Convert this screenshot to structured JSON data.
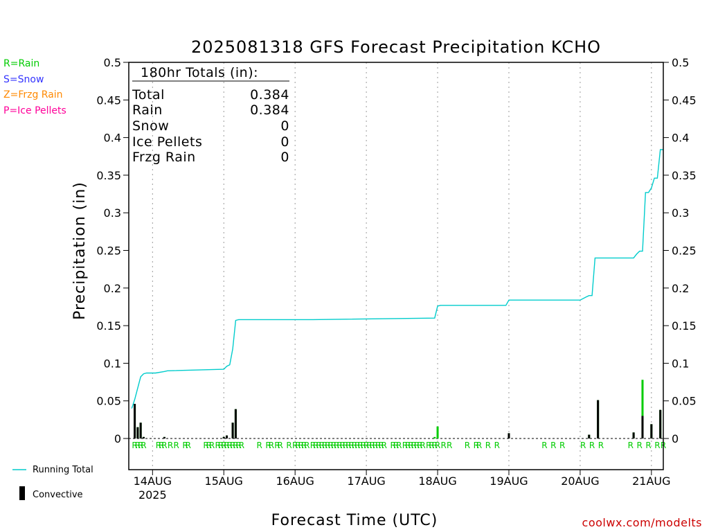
{
  "chart_data": {
    "type": "bar",
    "title": "2025081318 GFS Forecast Precipitation KCHO",
    "xlabel": "Forecast Time (UTC)",
    "ylabel": "Precipitation (in)",
    "ylim": [
      0,
      0.5
    ],
    "xlim_hours": [
      -2,
      178
    ],
    "y_ticks": [
      "0",
      "0.05",
      "0.1",
      "0.15",
      "0.2",
      "0.25",
      "0.3",
      "0.35",
      "0.4",
      "0.45",
      "0.5"
    ],
    "x_ticks": [
      {
        "hour": 6,
        "label": "14AUG",
        "sub": "2025"
      },
      {
        "hour": 30,
        "label": "15AUG"
      },
      {
        "hour": 54,
        "label": "16AUG"
      },
      {
        "hour": 78,
        "label": "17AUG"
      },
      {
        "hour": 102,
        "label": "18AUG"
      },
      {
        "hour": 126,
        "label": "19AUG"
      },
      {
        "hour": 150,
        "label": "20AUG"
      },
      {
        "hour": 174,
        "label": "21AUG"
      }
    ],
    "grid": "vertical dotted at day ticks",
    "legend_ptype": [
      {
        "text": "R=Rain",
        "color": "#00cc00"
      },
      {
        "text": "S=Snow",
        "color": "#3333ff"
      },
      {
        "text": "Z=Frzg Rain",
        "color": "#ff8800"
      },
      {
        "text": "P=Ice Pellets",
        "color": "#ff0099"
      }
    ],
    "legend_bottom": [
      {
        "text": "Running Total",
        "color": "#00cccc"
      },
      {
        "text": "Convective",
        "color": "#000000"
      }
    ],
    "totals": {
      "header": "180hr Totals (in):",
      "rows": [
        {
          "label": "Total",
          "value": "0.384"
        },
        {
          "label": "Rain",
          "value": "0.384"
        },
        {
          "label": "Snow",
          "value": "0"
        },
        {
          "label": "Ice Pellets",
          "value": "0"
        },
        {
          "label": "Frzg Rain",
          "value": "0"
        }
      ]
    },
    "precip_bars": [
      {
        "hour": 0,
        "rain": 0.046,
        "conv": 0.046
      },
      {
        "hour": 1,
        "rain": 0.015,
        "conv": 0.015
      },
      {
        "hour": 2,
        "rain": 0.021,
        "conv": 0.021
      },
      {
        "hour": 3,
        "rain": 0.002,
        "conv": 0.002
      },
      {
        "hour": 10,
        "rain": 0.002,
        "conv": 0.002
      },
      {
        "hour": 30,
        "rain": 0.002,
        "conv": 0.002
      },
      {
        "hour": 31,
        "rain": 0.004,
        "conv": 0.004
      },
      {
        "hour": 33,
        "rain": 0.021,
        "conv": 0.021
      },
      {
        "hour": 34,
        "rain": 0.039,
        "conv": 0.039
      },
      {
        "hour": 101,
        "rain": 0.002,
        "conv": 0.0
      },
      {
        "hour": 102,
        "rain": 0.016,
        "conv": 0.0
      },
      {
        "hour": 126,
        "rain": 0.007,
        "conv": 0.007
      },
      {
        "hour": 153,
        "rain": 0.005,
        "conv": 0.005
      },
      {
        "hour": 156,
        "rain": 0.051,
        "conv": 0.051
      },
      {
        "hour": 168,
        "rain": 0.008,
        "conv": 0.008
      },
      {
        "hour": 171,
        "rain": 0.078,
        "conv": 0.03
      },
      {
        "hour": 174,
        "rain": 0.019,
        "conv": 0.019
      },
      {
        "hour": 177,
        "rain": 0.038,
        "conv": 0.038
      }
    ],
    "running_total": {
      "x": [
        -1,
        0,
        1,
        2,
        3,
        4,
        7,
        10,
        11,
        30,
        31,
        32,
        33,
        34,
        35,
        60,
        101,
        102,
        103,
        120,
        125,
        126,
        127,
        150,
        152,
        153,
        154,
        155,
        156,
        157,
        168,
        169,
        170,
        171,
        172,
        173,
        174,
        175,
        176,
        177,
        178
      ],
      "y": [
        0.04,
        0.052,
        0.067,
        0.082,
        0.086,
        0.087,
        0.087,
        0.089,
        0.09,
        0.092,
        0.096,
        0.098,
        0.119,
        0.157,
        0.158,
        0.158,
        0.16,
        0.176,
        0.177,
        0.177,
        0.177,
        0.184,
        0.184,
        0.184,
        0.188,
        0.19,
        0.19,
        0.24,
        0.24,
        0.24,
        0.24,
        0.245,
        0.249,
        0.249,
        0.327,
        0.327,
        0.333,
        0.346,
        0.346,
        0.384,
        0.384
      ]
    },
    "ptype_labels": {
      "text": "R",
      "hours": [
        0,
        1,
        2,
        3,
        8,
        9,
        10,
        12,
        14,
        17,
        18,
        24,
        25,
        26,
        28,
        29,
        30,
        31,
        32,
        33,
        34,
        35,
        36,
        42,
        45,
        46,
        48,
        49,
        52,
        54,
        55,
        56,
        57,
        58,
        60,
        61,
        62,
        63,
        64,
        65,
        66,
        67,
        68,
        69,
        70,
        71,
        72,
        73,
        74,
        75,
        76,
        77,
        78,
        79,
        80,
        81,
        82,
        83,
        84,
        87,
        88,
        89,
        91,
        92,
        93,
        94,
        95,
        96,
        97,
        99,
        100,
        101,
        102,
        104,
        106,
        112,
        115,
        116,
        119,
        122,
        138,
        141,
        144,
        151,
        154,
        157,
        167,
        170,
        173,
        176,
        178
      ]
    },
    "credit": "coolwx.com/modelts"
  }
}
